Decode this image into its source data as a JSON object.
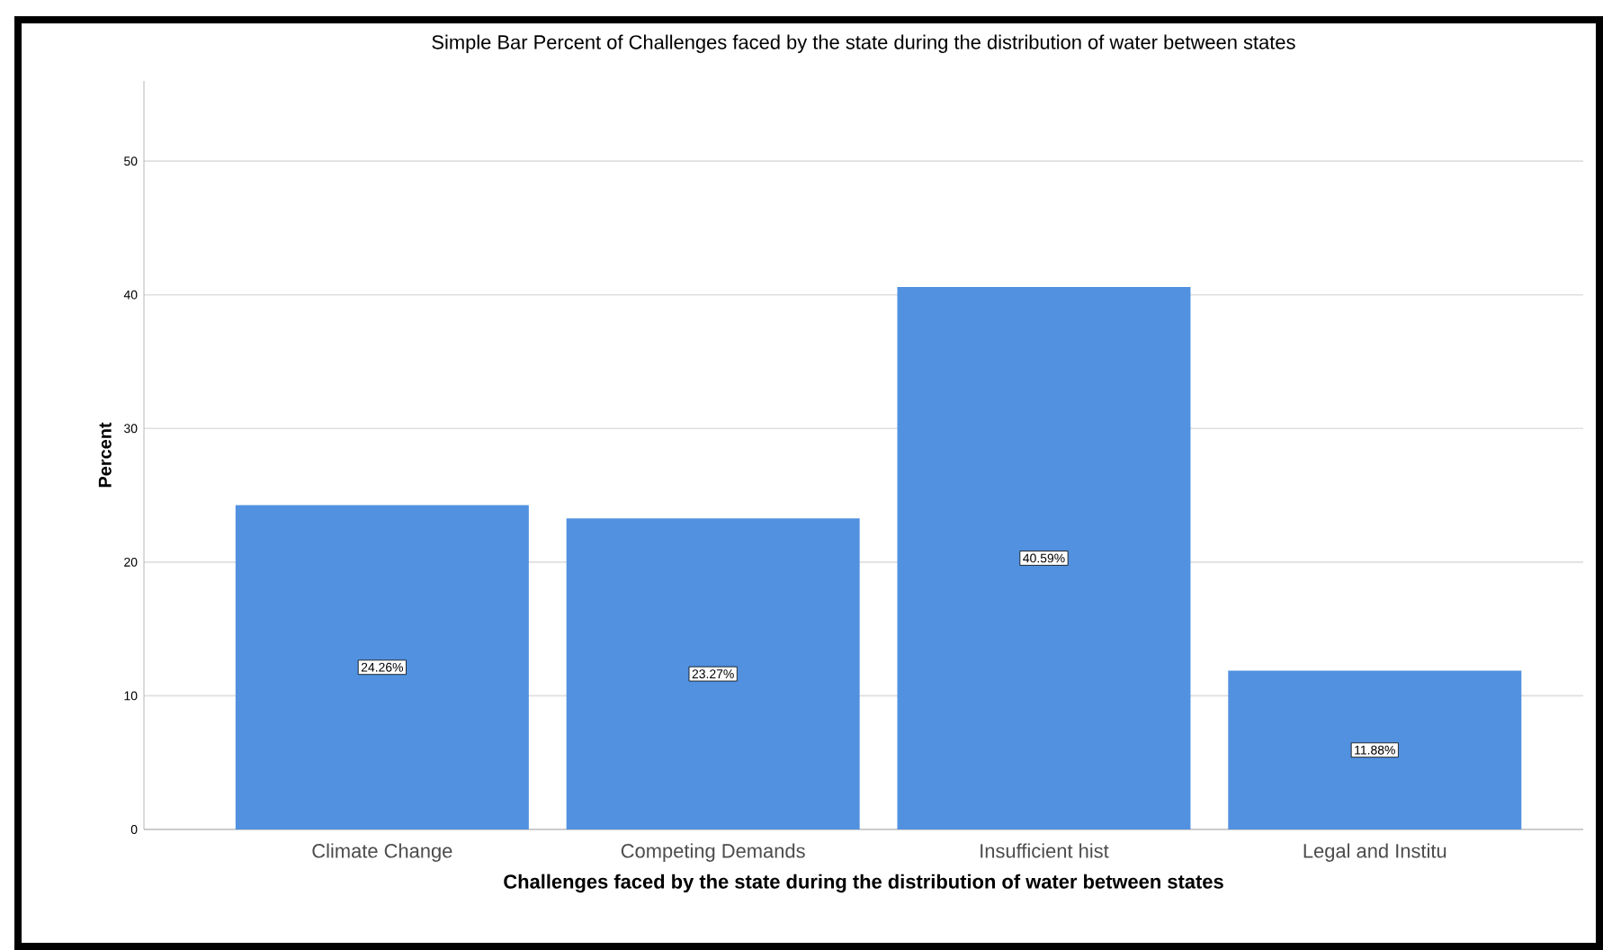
{
  "chart_data": {
    "type": "bar",
    "title": "Simple Bar Percent of Challenges faced by the state during the distribution of water between states",
    "xlabel": "Challenges faced by the state during the distribution of water between states",
    "ylabel": "Percent",
    "categories": [
      "Climate Change",
      "Competing Demands",
      "Insufficient hist",
      "Legal and Institu"
    ],
    "values": [
      24.26,
      23.27,
      40.59,
      11.88
    ],
    "value_labels": [
      "24.26%",
      "23.27%",
      "40.59%",
      "11.88%"
    ],
    "color": "#5191e0",
    "ylim": [
      0,
      56
    ],
    "yticks": [
      0,
      10,
      20,
      30,
      40,
      50
    ],
    "grid": "y"
  }
}
